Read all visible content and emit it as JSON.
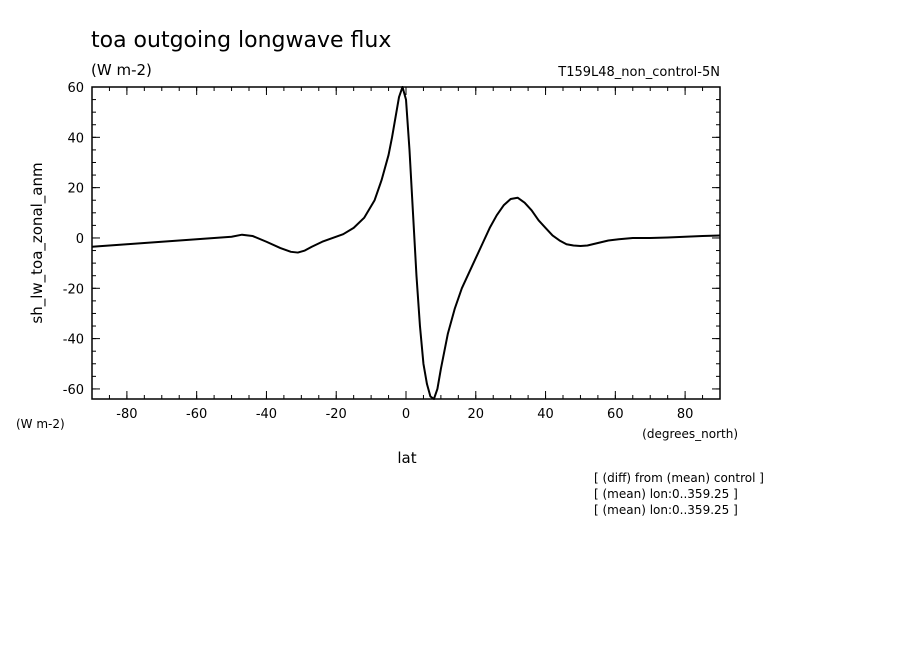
{
  "chart_data": {
    "type": "line",
    "title": "toa outgoing longwave flux",
    "units": "(W m-2)",
    "run_label": "T159L48_non_control-5N",
    "ylabel": "sh_lw_toa_zonal_anm",
    "y_units_label": "(W m-2)",
    "xlabel": "lat",
    "x_units_label": "(degrees_north)",
    "xlim": [
      -90,
      90
    ],
    "ylim": [
      -64,
      60
    ],
    "x_ticks": [
      -80,
      -60,
      -40,
      -20,
      0,
      20,
      40,
      60,
      80
    ],
    "x_tick_labels": [
      "-80",
      "-60",
      "-40",
      "-20",
      "0",
      "20",
      "40",
      "60",
      "80"
    ],
    "y_ticks": [
      -60,
      -40,
      -20,
      0,
      20,
      40,
      60
    ],
    "y_tick_labels": [
      "-60",
      "-40",
      "-20",
      "0",
      "20",
      "40",
      "60"
    ],
    "grid": false,
    "notes": [
      "[ (diff) from (mean) control ]",
      "[ (mean) lon:0..359.25 ]",
      "[ (mean) lon:0..359.25 ]"
    ],
    "series": [
      {
        "color": "#000000",
        "x": [
          -90,
          -85,
          -80,
          -75,
          -70,
          -65,
          -60,
          -55,
          -50,
          -47,
          -44,
          -40,
          -36,
          -33,
          -31,
          -29,
          -27,
          -24,
          -21,
          -18,
          -15,
          -12,
          -9,
          -7,
          -5,
          -4,
          -3,
          -2,
          -1,
          0,
          1,
          2,
          3,
          4,
          5,
          6,
          7,
          8,
          9,
          10,
          12,
          14,
          16,
          18,
          20,
          22,
          24,
          26,
          28,
          30,
          32,
          34,
          36,
          38,
          40,
          42,
          44,
          46,
          48,
          50,
          52,
          55,
          58,
          61,
          65,
          70,
          75,
          80,
          85,
          90
        ],
        "y": [
          -3.5,
          -3,
          -2.5,
          -2,
          -1.5,
          -1,
          -0.5,
          0,
          0.5,
          1.3,
          0.8,
          -1.5,
          -4,
          -5.5,
          -5.8,
          -5,
          -3.5,
          -1.5,
          0,
          1.5,
          4,
          8,
          15,
          23,
          33,
          40,
          48,
          56,
          60,
          55,
          35,
          10,
          -15,
          -35,
          -50,
          -58,
          -63,
          -64,
          -60,
          -52,
          -38,
          -28,
          -20,
          -14,
          -8,
          -2,
          4,
          9,
          13,
          15.5,
          16,
          14,
          11,
          7,
          4,
          1,
          -1,
          -2.5,
          -3,
          -3.2,
          -3,
          -2,
          -1,
          -0.5,
          0,
          0,
          0.2,
          0.5,
          0.8,
          1
        ]
      }
    ]
  }
}
